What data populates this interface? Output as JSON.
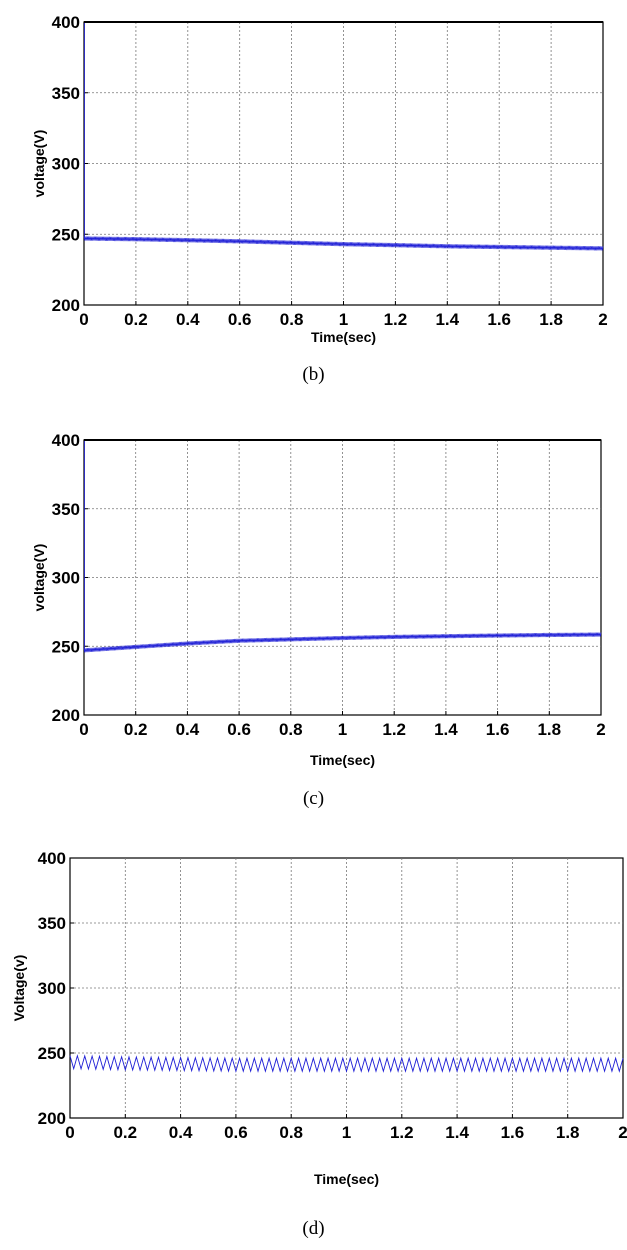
{
  "chart_data": [
    {
      "type": "line",
      "caption": "(b)",
      "xlabel": "Time(sec)",
      "ylabel": "voltage(V)",
      "xlim": [
        0,
        2
      ],
      "ylim": [
        200,
        400
      ],
      "xticks": [
        0,
        0.2,
        0.4,
        0.6,
        0.8,
        1,
        1.2,
        1.4,
        1.6,
        1.8,
        2
      ],
      "yticks": [
        200,
        250,
        300,
        350,
        400
      ],
      "grid": true,
      "colors": {
        "trace": "#1f1fd6",
        "reference": "#000000"
      },
      "series": [
        {
          "x": [
            0,
            0.2,
            0.4,
            0.6,
            0.8,
            1,
            1.2,
            1.4,
            1.6,
            1.8,
            2
          ],
          "y": [
            247,
            246.5,
            245.8,
            245,
            244,
            243,
            242.3,
            241.5,
            241,
            240.5,
            240
          ],
          "ripple": 3
        },
        {
          "x": [
            0,
            2
          ],
          "y": [
            400,
            400
          ],
          "ripple": 0
        }
      ]
    },
    {
      "type": "line",
      "caption": "(c)",
      "xlabel": "Time(sec)",
      "ylabel": "voltage(V)",
      "xlim": [
        0,
        2
      ],
      "ylim": [
        200,
        400
      ],
      "xticks": [
        0,
        0.2,
        0.4,
        0.6,
        0.8,
        1,
        1.2,
        1.4,
        1.6,
        1.8,
        2
      ],
      "yticks": [
        200,
        250,
        300,
        350,
        400
      ],
      "grid": true,
      "colors": {
        "trace": "#1f1fd6",
        "reference": "#000000"
      },
      "series": [
        {
          "x": [
            0,
            0.2,
            0.4,
            0.6,
            0.8,
            1,
            1.2,
            1.4,
            1.6,
            1.8,
            2
          ],
          "y": [
            247,
            249.5,
            252,
            254,
            255,
            256,
            256.8,
            257.3,
            257.8,
            258.2,
            258.5
          ],
          "ripple": 3
        },
        {
          "x": [
            0,
            2
          ],
          "y": [
            400,
            400
          ],
          "ripple": 0
        }
      ]
    },
    {
      "type": "line",
      "caption": "(d)",
      "xlabel": "Time(sec)",
      "ylabel": "Voltage(v)",
      "xlim": [
        0,
        2
      ],
      "ylim": [
        200,
        400
      ],
      "xticks": [
        0,
        0.2,
        0.4,
        0.6,
        0.8,
        1,
        1.2,
        1.4,
        1.6,
        1.8,
        2
      ],
      "yticks": [
        200,
        250,
        300,
        350,
        400
      ],
      "grid": true,
      "colors": {
        "trace": "#1f1fd6"
      },
      "series": [
        {
          "x": [
            0,
            0.2,
            0.4,
            0.6,
            0.8,
            1,
            1.2,
            1.4,
            1.6,
            1.8,
            2
          ],
          "y": [
            243,
            242,
            241.5,
            241,
            241,
            241,
            241,
            241,
            241,
            241,
            241
          ],
          "ripple": 10
        }
      ]
    }
  ]
}
